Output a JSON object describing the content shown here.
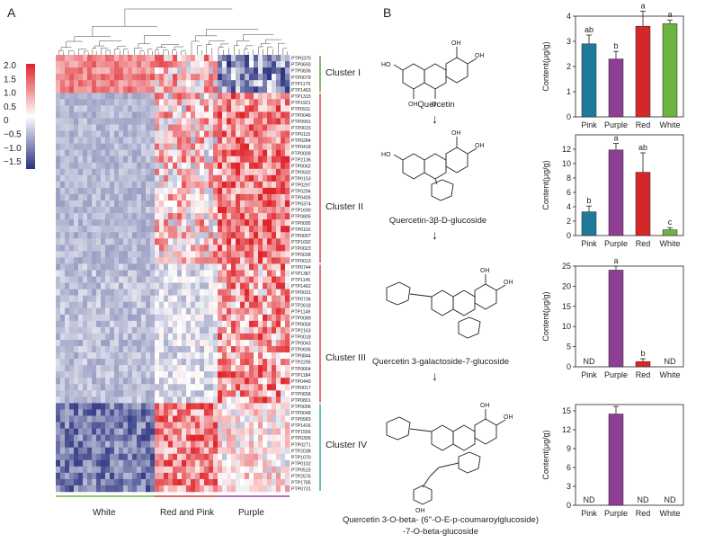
{
  "panels": {
    "a": "A",
    "b": "B"
  },
  "heatmap": {
    "legend_ticks": [
      "2.0",
      "1.5",
      "1.0",
      "0.5",
      "0",
      "−0.5",
      "−1.0",
      "−1.5"
    ],
    "colors": {
      "high": "#e0242a",
      "mid": "#ffffff",
      "low": "#27307e",
      "cluster_bar": "#4f9a3a"
    },
    "genes": [
      "PTP0370",
      "PTP0693",
      "PTP0836",
      "PTP0079",
      "PTP1175",
      "PTP1453",
      "PTP1315",
      "PTP1921",
      "PTP0911",
      "PTP0046",
      "PTP0991",
      "PTP0015",
      "PTP0115",
      "PTP0284",
      "PTP0418",
      "PTP0009",
      "PTP2136",
      "PTP0062",
      "PTP0592",
      "PTP0153",
      "PTP0297",
      "PTP0294",
      "PTP0405",
      "PTP0374",
      "PTP1690",
      "PTP0805",
      "PTP0095",
      "PTP0110",
      "PTP0007",
      "PTP1692",
      "PTP0023",
      "PTP0038",
      "PTP0013",
      "PTP0744",
      "PTP1387",
      "PTP1145",
      "PTP1462",
      "PTP0031",
      "PTP0736",
      "PTP2618",
      "PTP1149",
      "PTP0089",
      "PTP0058",
      "PTP2163",
      "PTP0018",
      "PTP0043",
      "PTP0606",
      "PTP0844",
      "PTP2295",
      "PTP0664",
      "PTP1184",
      "PTP0440",
      "PTP0017",
      "PTP0658",
      "PTP0801",
      "PTP0006",
      "PTP0048",
      "PTP0583",
      "PTP1416",
      "PTP1556",
      "PTP0305",
      "PTP0271",
      "PTP2038",
      "PTP1070",
      "PTP0102",
      "PTP0515",
      "PTP2576",
      "PTP1785",
      "PTP0731"
    ],
    "clusters": [
      "Cluster I",
      "Cluster II",
      "Cluster III",
      "Cluster IV"
    ],
    "cluster_row_counts": [
      6,
      27,
      22,
      14
    ],
    "groups": [
      "White",
      "Red and Pink",
      "Purple"
    ],
    "group_colors": [
      "#6db33f",
      "#d9353a",
      "#8e44ad"
    ]
  },
  "pathway": {
    "compounds": [
      "Quercetin",
      "Quercetin-3β-D-glucoside",
      "Quercetin 3-galactoside-7-glucoside",
      "Quercetin 3-O-beta- (6''-O-E-p-coumaroylglucoside)",
      "-7-O-beta-glucoside"
    ],
    "arrow": "↓"
  },
  "chart_data": [
    {
      "type": "bar",
      "title": "Quercetin",
      "categories": [
        "Pink",
        "Purple",
        "Red",
        "White"
      ],
      "values": [
        2.9,
        2.3,
        3.6,
        3.7
      ],
      "errors": [
        0.35,
        0.3,
        0.6,
        0.15
      ],
      "letters": [
        "ab",
        "b",
        "a",
        "a"
      ],
      "colors": [
        "#1f7a99",
        "#8e3f93",
        "#d62728",
        "#6db33f"
      ],
      "ylabel": "Content(μg/g)",
      "ylim": [
        0,
        4
      ],
      "yticks": [
        0,
        1,
        2,
        3,
        4
      ]
    },
    {
      "type": "bar",
      "title": "Quercetin-3β-D-glucoside",
      "categories": [
        "Pink",
        "Purple",
        "Red",
        "White"
      ],
      "values": [
        3.3,
        11.9,
        8.8,
        0.8
      ],
      "errors": [
        0.8,
        0.9,
        2.7,
        0.3
      ],
      "letters": [
        "b",
        "a",
        "ab",
        "c"
      ],
      "colors": [
        "#1f7a99",
        "#8e3f93",
        "#d62728",
        "#6db33f"
      ],
      "ylabel": "Content(μg/g)",
      "ylim": [
        0,
        14
      ],
      "yticks": [
        0,
        2,
        4,
        6,
        8,
        10,
        12
      ]
    },
    {
      "type": "bar",
      "title": "Quercetin 3-galactoside-7-glucoside",
      "categories": [
        "Pink",
        "Purple",
        "Red",
        "White"
      ],
      "values": [
        0,
        24.0,
        1.3,
        0
      ],
      "errors": [
        0,
        1.0,
        0.7,
        0
      ],
      "letters": [
        "",
        "a",
        "b",
        ""
      ],
      "nd": [
        "ND",
        "",
        "",
        "ND"
      ],
      "colors": [
        "#1f7a99",
        "#8e3f93",
        "#d62728",
        "#6db33f"
      ],
      "ylabel": "Content(μg/g)",
      "ylim": [
        0,
        25
      ],
      "yticks": [
        0,
        5,
        10,
        15,
        20,
        25
      ]
    },
    {
      "type": "bar",
      "title": "Quercetin 3-O-beta-(6''-O-E-p-coumaroylglucoside)-7-O-beta-glucoside",
      "categories": [
        "Pink",
        "Purple",
        "Red",
        "White"
      ],
      "values": [
        0,
        14.5,
        0,
        0
      ],
      "errors": [
        0,
        1.2,
        0,
        0
      ],
      "letters": [
        "",
        "",
        "",
        ""
      ],
      "nd": [
        "ND",
        "",
        "ND",
        "ND"
      ],
      "colors": [
        "#1f7a99",
        "#8e3f93",
        "#d62728",
        "#6db33f"
      ],
      "ylabel": "Content(μg/g)",
      "ylim": [
        0,
        16
      ],
      "yticks": [
        0,
        3,
        6,
        9,
        12,
        15
      ]
    }
  ]
}
